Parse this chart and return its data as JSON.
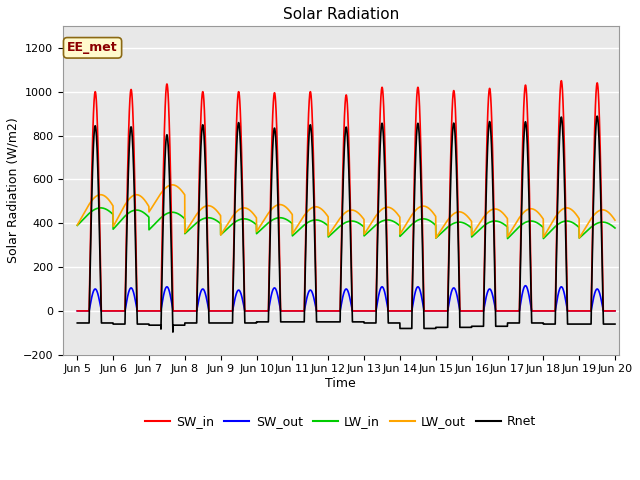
{
  "title": "Solar Radiation",
  "xlabel": "Time",
  "ylabel": "Solar Radiation (W/m2)",
  "ylim": [
    -200,
    1300
  ],
  "xlim_days": [
    4.6,
    20.1
  ],
  "annotation_text": "EE_met",
  "annotation_color": "#8B0000",
  "annotation_bg": "#FFFACD",
  "annotation_edge": "#8B6914",
  "background_color": "#E8E8E8",
  "grid_color": "white",
  "series_colors": {
    "SW_in": "#FF0000",
    "SW_out": "#0000FF",
    "LW_in": "#00CC00",
    "LW_out": "#FFA500",
    "Rnet": "#000000"
  },
  "tick_labels": [
    "Jun 5",
    "Jun 6",
    "Jun 7",
    "Jun 8",
    "Jun 9",
    "Jun 10",
    "Jun 11",
    "Jun 12",
    "Jun 13",
    "Jun 14",
    "Jun 15",
    "Jun 16",
    "Jun 17",
    "Jun 18",
    "Jun 19",
    "Jun 20"
  ],
  "tick_positions": [
    5,
    6,
    7,
    8,
    9,
    10,
    11,
    12,
    13,
    14,
    15,
    16,
    17,
    18,
    19,
    20
  ],
  "n_days": 15,
  "start_day": 5,
  "pts_per_day": 288,
  "SW_in_peaks": [
    1000,
    1010,
    1035,
    1000,
    1000,
    995,
    1000,
    985,
    1020,
    1020,
    1005,
    1015,
    1030,
    1050,
    1040
  ],
  "SW_out_peaks": [
    100,
    105,
    110,
    100,
    95,
    105,
    95,
    100,
    110,
    110,
    105,
    100,
    115,
    110,
    100
  ],
  "LW_in_base": [
    415,
    400,
    395,
    375,
    370,
    375,
    365,
    360,
    365,
    365,
    355,
    360,
    355,
    355,
    355
  ],
  "LW_in_day_amp": [
    55,
    60,
    55,
    50,
    50,
    50,
    50,
    50,
    50,
    55,
    50,
    50,
    55,
    55,
    50
  ],
  "LW_out_base": [
    435,
    430,
    490,
    395,
    385,
    400,
    390,
    380,
    388,
    390,
    370,
    383,
    378,
    378,
    373
  ],
  "LW_out_day_amp": [
    95,
    100,
    85,
    85,
    85,
    85,
    85,
    80,
    85,
    88,
    82,
    82,
    88,
    92,
    88
  ],
  "Rnet_night": [
    -55,
    -60,
    -65,
    -55,
    -55,
    -50,
    -50,
    -50,
    -55,
    -80,
    -75,
    -70,
    -55,
    -60,
    -60
  ],
  "title_fontsize": 11,
  "label_fontsize": 9,
  "tick_fontsize": 8,
  "legend_fontsize": 9,
  "line_width": 1.2,
  "figsize": [
    6.4,
    4.8
  ],
  "dpi": 100
}
